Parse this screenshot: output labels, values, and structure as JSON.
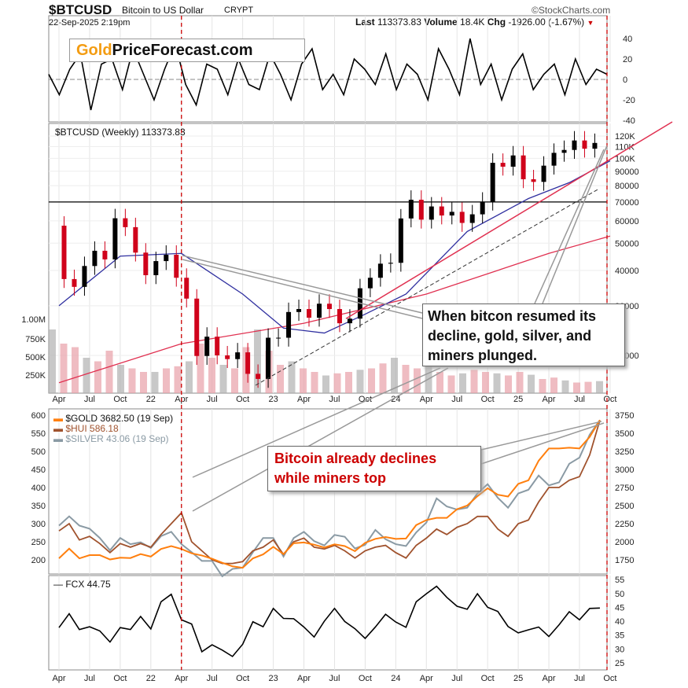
{
  "header": {
    "symbol": "$BTCUSD",
    "name": "Bitcoin to US Dollar",
    "exchange": "CRYPT",
    "copyright": "©StockCharts.com",
    "datetime": "22-Sep-2025 2:19pm",
    "last_label": "Last",
    "last": "113373.83",
    "volume_label": "Volume",
    "volume": "18.4K",
    "chg_label": "Chg",
    "chg": "-1926.00 (-1.67%)"
  },
  "logo": {
    "part1": "Gold",
    "part2": "PriceForecast.com"
  },
  "colors": {
    "gold": "#ff7f0e",
    "hui": "#a0522d",
    "silver": "#8a9aa4",
    "btc_up": "#000000",
    "btc_down": "#d0021b",
    "ma_fast": "#3030a0",
    "ma_slow": "#e03050",
    "annotation_red": "#cc0000"
  },
  "chart_data": [
    {
      "type": "line",
      "title": "",
      "panel": "oscillator",
      "yticks": [
        40,
        20,
        0,
        -20,
        -40
      ],
      "values": [
        5,
        -15,
        10,
        25,
        -30,
        15,
        20,
        -10,
        30,
        5,
        -20,
        10,
        35,
        -5,
        -25,
        15,
        10,
        -15,
        20,
        -5,
        -10,
        25,
        5,
        -20,
        15,
        30,
        -10,
        5,
        -15,
        20,
        10,
        -5,
        25,
        -10,
        15,
        5,
        -20,
        30,
        10,
        -15,
        40,
        -5,
        15,
        -20,
        10,
        25,
        -10,
        5,
        15,
        -15,
        20,
        -5,
        10,
        5
      ]
    },
    {
      "type": "line",
      "panel": "price",
      "label": "$BTCUSD (Weekly) 113373.83",
      "scale": "log",
      "yticks": [
        "120K",
        "110K",
        "100K",
        "90000",
        "80000",
        "70000",
        "60000",
        "50000",
        "40000",
        "30000",
        "20000"
      ],
      "volume_ticks": [
        "1.00M",
        "750K",
        "500K",
        "250K"
      ],
      "horizontal_line": 70000,
      "x_start": "2021-04",
      "btc_monthly_k": [
        57.7,
        37.3,
        35,
        41.5,
        47,
        43.8,
        61.3,
        57,
        46.3,
        38.5,
        43.2,
        45.5,
        37.7,
        31.8,
        19.9,
        23.3,
        20,
        19.4,
        20.5,
        17.2,
        16.5,
        23.1,
        23.1,
        28.5,
        29.2,
        27.2,
        30.5,
        29.2,
        26,
        27,
        34.6,
        37.7,
        42.3,
        42.6,
        61.2,
        71.3,
        60.6,
        67.5,
        62.7,
        64.6,
        59,
        63.3,
        70.2,
        96.4,
        93.4,
        102.4,
        84.3,
        82.5,
        94.2,
        104.6,
        107.1,
        115.7,
        108.2,
        113.4
      ],
      "ma_fast_k": [
        [
          0,
          30
        ],
        [
          6,
          45
        ],
        [
          12,
          46
        ],
        [
          18,
          33
        ],
        [
          22,
          25
        ],
        [
          26,
          24
        ],
        [
          30,
          28
        ],
        [
          34,
          33
        ],
        [
          40,
          55
        ],
        [
          46,
          72
        ],
        [
          50,
          82
        ],
        [
          54,
          98
        ]
      ],
      "ma_slow_k": [
        [
          0,
          16
        ],
        [
          12,
          22
        ],
        [
          24,
          26
        ],
        [
          36,
          33
        ],
        [
          48,
          46
        ],
        [
          54,
          53
        ]
      ],
      "volume_k": [
        900,
        700,
        650,
        500,
        450,
        600,
        400,
        350,
        300,
        300,
        350,
        380,
        450,
        700,
        500,
        400,
        350,
        650,
        900,
        600,
        400,
        450,
        350,
        300,
        250,
        280,
        300,
        330,
        350,
        420,
        500,
        400,
        350,
        380,
        300,
        250,
        280,
        330,
        300,
        280,
        250,
        300,
        260,
        200,
        220,
        180,
        150,
        160,
        170
      ]
    },
    {
      "type": "line",
      "panel": "metals",
      "legend": [
        "$GOLD 3682.50 (19 Sep)",
        "$HUI 586.18",
        "$SILVER 43.06 (19 Sep)"
      ],
      "left_ticks": [
        600,
        550,
        500,
        450,
        400,
        350,
        300,
        250,
        200
      ],
      "right_ticks": [
        3750,
        3500,
        3250,
        3000,
        2750,
        2500,
        2250,
        2000,
        1750
      ],
      "gold": [
        1770,
        1905,
        1770,
        1815,
        1815,
        1755,
        1780,
        1775,
        1830,
        1795,
        1900,
        1940,
        1900,
        1840,
        1810,
        1765,
        1710,
        1660,
        1640,
        1770,
        1825,
        1930,
        1830,
        1980,
        1990,
        1960,
        1920,
        1965,
        1940,
        1870,
        1985,
        2040,
        2065,
        2040,
        2045,
        2230,
        2300,
        2330,
        2330,
        2450,
        2500,
        2630,
        2740,
        2650,
        2625,
        2800,
        2850,
        3120,
        3290,
        3290,
        3300,
        3290,
        3450,
        3682
      ],
      "hui": [
        280,
        300,
        255,
        265,
        245,
        220,
        245,
        235,
        245,
        235,
        270,
        300,
        330,
        250,
        225,
        200,
        190,
        190,
        195,
        225,
        235,
        255,
        215,
        250,
        260,
        235,
        230,
        240,
        225,
        205,
        225,
        235,
        240,
        220,
        205,
        240,
        260,
        285,
        270,
        290,
        300,
        320,
        320,
        285,
        265,
        300,
        310,
        360,
        400,
        400,
        420,
        430,
        490,
        586
      ],
      "silver": [
        26,
        27.5,
        26,
        25.5,
        24,
        22,
        24,
        23,
        23.3,
        22.4,
        24.3,
        25,
        23,
        21.7,
        20.3,
        20.3,
        17.8,
        19,
        19.2,
        21.7,
        24,
        24,
        21,
        24,
        25,
        23.5,
        22.8,
        24.5,
        24.2,
        22.3,
        22.9,
        25.3,
        23.8,
        23,
        22.7,
        24.9,
        26.5,
        30.4,
        29.1,
        28.6,
        28.9,
        31.2,
        32.7,
        30.5,
        28.9,
        31.2,
        31.8,
        34.1,
        32.5,
        33,
        36,
        37,
        40.7,
        43.06
      ]
    },
    {
      "type": "line",
      "panel": "fcx",
      "label": "FCX 44.75",
      "yticks": [
        55,
        50,
        45,
        40,
        35,
        30,
        25
      ],
      "values": [
        37.7,
        42.7,
        37,
        38,
        36.5,
        32.5,
        37.7,
        37,
        41.7,
        37.2,
        47,
        49.7,
        40.5,
        39,
        29,
        31.5,
        29.6,
        27.3,
        31.7,
        39.8,
        38,
        44.6,
        41,
        40.9,
        37.9,
        34.3,
        40,
        44.6,
        39.9,
        37.3,
        33.8,
        37.9,
        42.5,
        39.7,
        37.8,
        47,
        49.9,
        52.6,
        48.6,
        45.4,
        44.3,
        49.9,
        45,
        43.5,
        38.1,
        35.8,
        36.9,
        37.9,
        34.5,
        38.7,
        43.4,
        40.5,
        44.6,
        44.75
      ]
    }
  ],
  "xaxis": [
    "Apr",
    "Jul",
    "Oct",
    "22",
    "Apr",
    "Jul",
    "Oct",
    "23",
    "Apr",
    "Jul",
    "Oct",
    "24",
    "Apr",
    "Jul",
    "Oct",
    "25",
    "Apr",
    "Jul",
    "Oct"
  ],
  "annotations": {
    "callout1": "When bitcon resumed its decline, gold, silver, and miners plunged.",
    "callout2": "Bitcoin already declines while miners top"
  }
}
